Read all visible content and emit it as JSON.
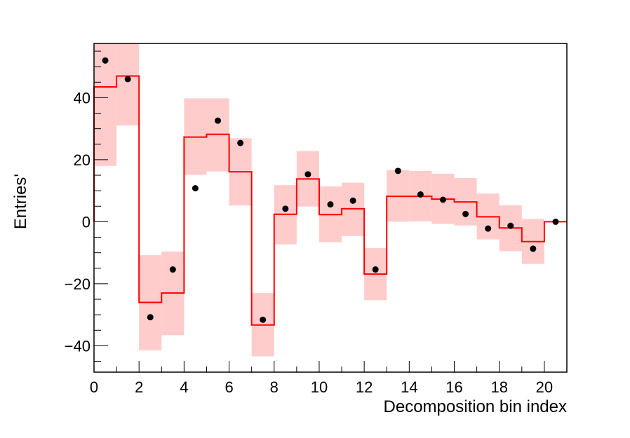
{
  "chart_data": {
    "type": "bar",
    "xlabel": "Decomposition bin index",
    "ylabel": "Entries'",
    "xlim": [
      0,
      21
    ],
    "ylim": [
      -48.5,
      57.5
    ],
    "x_ticks": [
      0,
      2,
      4,
      6,
      8,
      10,
      12,
      14,
      16,
      18,
      20
    ],
    "y_ticks": [
      -40,
      -20,
      0,
      20,
      40
    ],
    "grid": false,
    "colors": {
      "hist_line": "#ff0000",
      "band_fill": "#ffcccc",
      "points": "#000000"
    },
    "bin_edges": [
      0,
      1,
      2,
      3,
      4,
      5,
      6,
      7,
      8,
      9,
      10,
      11,
      12,
      13,
      14,
      15,
      16,
      17,
      18,
      19,
      20,
      21
    ],
    "series": [
      {
        "type": "step",
        "values": [
          43.5,
          47.0,
          -26.0,
          -23.0,
          27.3,
          28.2,
          16.1,
          -33.3,
          2.4,
          13.8,
          2.3,
          4.2,
          -16.9,
          8.2,
          8.2,
          7.3,
          6.4,
          1.6,
          -2.0,
          -6.4,
          0.0
        ]
      },
      {
        "type": "band",
        "lower": [
          18.0,
          31.0,
          -41.5,
          -36.6,
          15.1,
          16.2,
          5.2,
          -43.4,
          -7.3,
          4.9,
          -6.6,
          -4.6,
          -25.3,
          0.0,
          0.1,
          -0.7,
          -1.2,
          -5.7,
          -9.5,
          -13.6,
          0.0
        ],
        "upper": [
          57.5,
          57.5,
          -10.8,
          -9.6,
          39.8,
          39.8,
          26.9,
          -23.0,
          11.8,
          22.8,
          11.4,
          12.6,
          -8.5,
          16.7,
          16.4,
          15.5,
          14.1,
          9.1,
          5.3,
          0.9,
          0.0
        ]
      },
      {
        "type": "points",
        "x": [
          0.5,
          1.5,
          2.5,
          3.5,
          4.5,
          5.5,
          6.5,
          7.5,
          8.5,
          9.5,
          10.5,
          11.5,
          12.5,
          13.5,
          14.5,
          15.5,
          16.5,
          17.5,
          18.5,
          19.5,
          20.5
        ],
        "values": [
          52.0,
          46.0,
          -30.8,
          -15.4,
          10.8,
          32.6,
          25.4,
          -31.6,
          4.2,
          15.3,
          5.6,
          6.8,
          -15.4,
          16.4,
          8.8,
          7.1,
          2.5,
          -2.2,
          -1.3,
          -8.7,
          0.0
        ]
      }
    ]
  }
}
